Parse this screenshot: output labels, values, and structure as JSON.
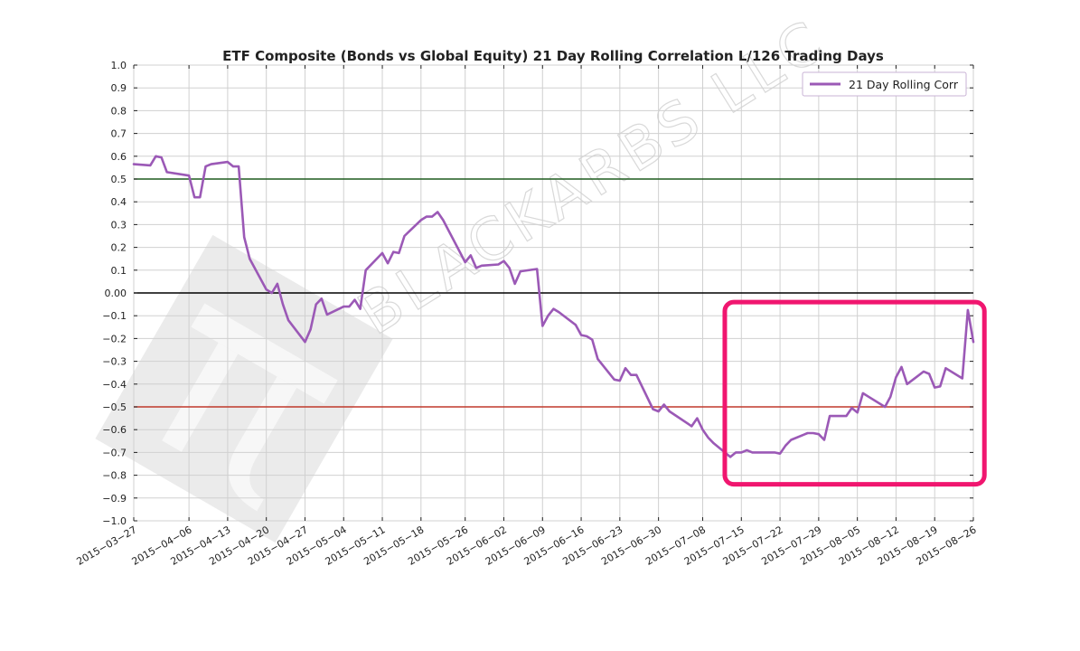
{
  "chart_data": {
    "type": "line",
    "title": "ETF Composite (Bonds vs Global Equity) 21 Day Rolling Correlation L/126 Trading Days",
    "xlabel": "",
    "ylabel": "",
    "xlim": [
      "2015-03-27",
      "2015-08-26"
    ],
    "ylim": [
      -1.0,
      1.0
    ],
    "yticks": [
      "1.0",
      "0.9",
      "0.8",
      "0.7",
      "0.6",
      "0.5",
      "0.4",
      "0.3",
      "0.2",
      "0.1",
      "0.00",
      "−0.1",
      "−0.2",
      "−0.3",
      "−0.4",
      "−0.5",
      "−0.6",
      "−0.7",
      "−0.8",
      "−0.9",
      "−1.0"
    ],
    "xticks": [
      "2015−03−27",
      "2015−04−06",
      "2015−04−13",
      "2015−04−20",
      "2015−04−27",
      "2015−05−04",
      "2015−05−11",
      "2015−05−18",
      "2015−05−26",
      "2015−06−02",
      "2015−06−09",
      "2015−06−16",
      "2015−06−23",
      "2015−06−30",
      "2015−07−08",
      "2015−07−15",
      "2015−07−22",
      "2015−07−29",
      "2015−08−05",
      "2015−08−12",
      "2015−08−19",
      "2015−08−26"
    ],
    "grid": true,
    "legend_position": "top-right",
    "series": [
      {
        "name": "21 Day Rolling Corr",
        "color": "#9b59b6",
        "x": [
          "2015-03-27",
          "2015-03-30",
          "2015-03-31",
          "2015-04-01",
          "2015-04-02",
          "2015-04-06",
          "2015-04-07",
          "2015-04-08",
          "2015-04-09",
          "2015-04-10",
          "2015-04-13",
          "2015-04-14",
          "2015-04-15",
          "2015-04-16",
          "2015-04-17",
          "2015-04-20",
          "2015-04-21",
          "2015-04-22",
          "2015-04-23",
          "2015-04-24",
          "2015-04-27",
          "2015-04-28",
          "2015-04-29",
          "2015-04-30",
          "2015-05-01",
          "2015-05-04",
          "2015-05-05",
          "2015-05-06",
          "2015-05-07",
          "2015-05-08",
          "2015-05-11",
          "2015-05-12",
          "2015-05-13",
          "2015-05-14",
          "2015-05-15",
          "2015-05-18",
          "2015-05-19",
          "2015-05-20",
          "2015-05-21",
          "2015-05-22",
          "2015-05-26",
          "2015-05-27",
          "2015-05-28",
          "2015-05-29",
          "2015-06-01",
          "2015-06-02",
          "2015-06-03",
          "2015-06-04",
          "2015-06-05",
          "2015-06-08",
          "2015-06-09",
          "2015-06-10",
          "2015-06-11",
          "2015-06-12",
          "2015-06-15",
          "2015-06-16",
          "2015-06-17",
          "2015-06-18",
          "2015-06-19",
          "2015-06-22",
          "2015-06-23",
          "2015-06-24",
          "2015-06-25",
          "2015-06-26",
          "2015-06-29",
          "2015-06-30",
          "2015-07-01",
          "2015-07-02",
          "2015-07-06",
          "2015-07-07",
          "2015-07-08",
          "2015-07-09",
          "2015-07-10",
          "2015-07-13",
          "2015-07-14",
          "2015-07-15",
          "2015-07-16",
          "2015-07-17",
          "2015-07-20",
          "2015-07-21",
          "2015-07-22",
          "2015-07-23",
          "2015-07-24",
          "2015-07-27",
          "2015-07-28",
          "2015-07-29",
          "2015-07-30",
          "2015-07-31",
          "2015-08-03",
          "2015-08-04",
          "2015-08-05",
          "2015-08-06",
          "2015-08-07",
          "2015-08-10",
          "2015-08-11",
          "2015-08-12",
          "2015-08-13",
          "2015-08-14",
          "2015-08-17",
          "2015-08-18",
          "2015-08-19",
          "2015-08-20",
          "2015-08-21",
          "2015-08-24",
          "2015-08-25",
          "2015-08-26"
        ],
        "values": [
          0.565,
          0.56,
          0.6,
          0.595,
          0.53,
          0.515,
          0.42,
          0.42,
          0.555,
          0.565,
          0.575,
          0.555,
          0.555,
          0.245,
          0.15,
          0.015,
          0.0,
          0.04,
          -0.05,
          -0.12,
          -0.215,
          -0.16,
          -0.05,
          -0.025,
          -0.095,
          -0.06,
          -0.06,
          -0.03,
          -0.07,
          0.1,
          0.175,
          0.13,
          0.18,
          0.175,
          0.25,
          0.32,
          0.335,
          0.335,
          0.355,
          0.32,
          0.135,
          0.165,
          0.11,
          0.12,
          0.125,
          0.14,
          0.11,
          0.04,
          0.095,
          0.105,
          -0.145,
          -0.1,
          -0.07,
          -0.085,
          -0.14,
          -0.185,
          -0.19,
          -0.205,
          -0.29,
          -0.38,
          -0.385,
          -0.33,
          -0.36,
          -0.36,
          -0.51,
          -0.52,
          -0.49,
          -0.52,
          -0.585,
          -0.55,
          -0.6,
          -0.635,
          -0.66,
          -0.72,
          -0.7,
          -0.7,
          -0.69,
          -0.7,
          -0.7,
          -0.7,
          -0.705,
          -0.67,
          -0.645,
          -0.615,
          -0.615,
          -0.62,
          -0.645,
          -0.54,
          -0.54,
          -0.505,
          -0.525,
          -0.44,
          -0.455,
          -0.5,
          -0.455,
          -0.37,
          -0.325,
          -0.4,
          -0.345,
          -0.355,
          -0.415,
          -0.41,
          -0.33,
          -0.375,
          -0.075,
          -0.215
        ]
      }
    ],
    "reference_lines": [
      {
        "y": 0.5,
        "color": "#1e5b1e"
      },
      {
        "y": 0.0,
        "color": "#000000"
      },
      {
        "y": -0.5,
        "color": "#c0392b"
      }
    ],
    "highlight_box": {
      "x_start": "2015-07-12",
      "x_end": "2015-08-28",
      "y_top": -0.04,
      "y_bottom": -0.84,
      "color": "#f0166f"
    }
  },
  "watermark": {
    "text": "BLACKARBS LLC",
    "logo": "pi-logo"
  }
}
